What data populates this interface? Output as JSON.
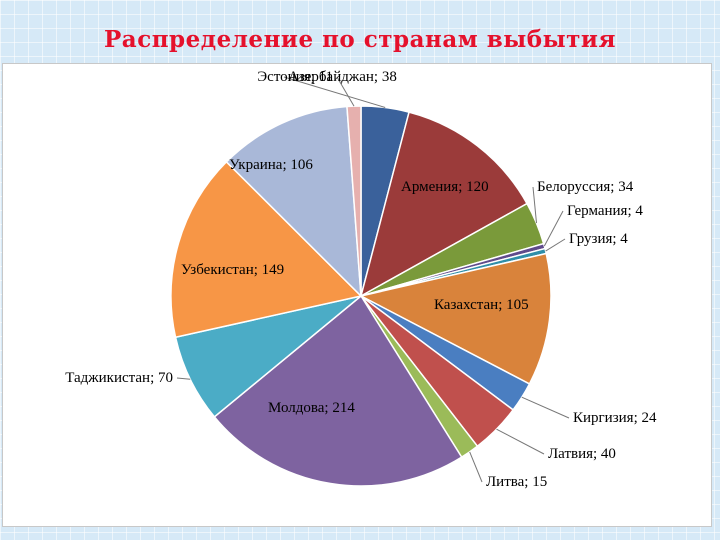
{
  "slide": {
    "title": "Распределение по странам выбытия"
  },
  "chart_data": {
    "type": "pie",
    "title": "",
    "series": [
      {
        "name": "Азербайджан",
        "value": 38,
        "color": "#3a619b",
        "label": "Азербайджан; 38"
      },
      {
        "name": "Армения",
        "value": 120,
        "color": "#9b3b3a",
        "label": "Армения; 120"
      },
      {
        "name": "Белоруссия",
        "value": 34,
        "color": "#7a9a3a",
        "label": "Белоруссия; 34"
      },
      {
        "name": "Германия",
        "value": 4,
        "color": "#5f4a8b",
        "label": "Германия; 4"
      },
      {
        "name": "Грузия",
        "value": 4,
        "color": "#2f8ea8",
        "label": "Грузия; 4"
      },
      {
        "name": "Казахстан",
        "value": 105,
        "color": "#d9833b",
        "label": "Казахстан; 105"
      },
      {
        "name": "Киргизия",
        "value": 24,
        "color": "#4a7ec1",
        "label": "Киргизия; 24"
      },
      {
        "name": "Латвия",
        "value": 40,
        "color": "#c0504d",
        "label": "Латвия; 40"
      },
      {
        "name": "Литва",
        "value": 15,
        "color": "#9bbb59",
        "label": "Литва; 15"
      },
      {
        "name": "Молдова",
        "value": 214,
        "color": "#7e63a0",
        "label": "Молдова; 214"
      },
      {
        "name": "Таджикистан",
        "value": 70,
        "color": "#4bacc6",
        "label": "Таджикистан; 70"
      },
      {
        "name": "Узбекистан",
        "value": 149,
        "color": "#f79646",
        "label": "Узбекистан; 149"
      },
      {
        "name": "Украина",
        "value": 106,
        "color": "#a9b8d8",
        "label": "Украина; 106"
      },
      {
        "name": "Эстония",
        "value": 11,
        "color": "#e6b0ae",
        "label": "Эстония; 11"
      }
    ]
  }
}
